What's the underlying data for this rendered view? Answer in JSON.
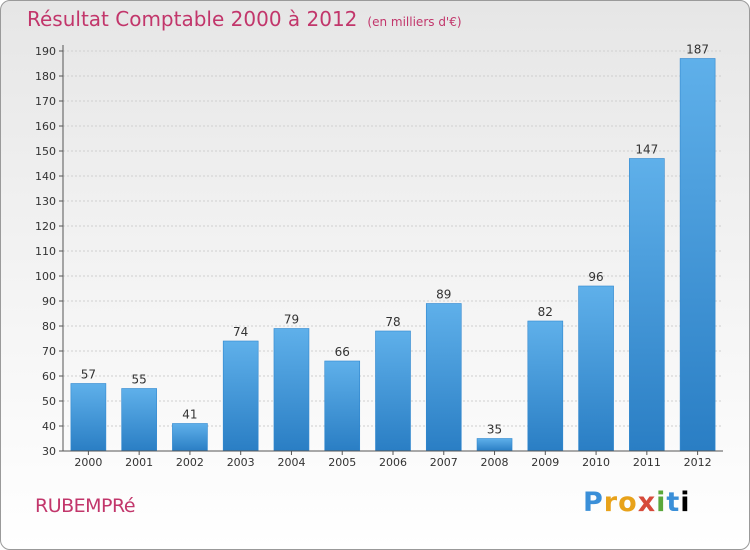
{
  "header": {
    "title": "Résultat Comptable 2000 à 2012",
    "subtitle": "(en milliers d'€)"
  },
  "footer": {
    "place": "RUBEMPRé",
    "brand_letters": [
      "P",
      "r",
      "o",
      "x",
      "i",
      "t",
      "i"
    ]
  },
  "colors": {
    "title": "#c2366b",
    "bar_top": "#5fb0ea",
    "bar_bottom": "#2a7ec4"
  },
  "chart_data": {
    "type": "bar",
    "title": "Résultat Comptable 2000 à 2012",
    "subtitle": "(en milliers d'€)",
    "categories": [
      "2000",
      "2001",
      "2002",
      "2003",
      "2004",
      "2005",
      "2006",
      "2007",
      "2008",
      "2009",
      "2010",
      "2011",
      "2012"
    ],
    "values": [
      57,
      55,
      41,
      74,
      79,
      66,
      78,
      89,
      35,
      82,
      96,
      147,
      187
    ],
    "xlabel": "",
    "ylabel": "",
    "ylim": [
      30,
      190
    ],
    "yticks": [
      30,
      40,
      50,
      60,
      70,
      80,
      90,
      100,
      110,
      120,
      130,
      140,
      150,
      160,
      170,
      180,
      190
    ],
    "grid": true,
    "data_labels": true
  }
}
